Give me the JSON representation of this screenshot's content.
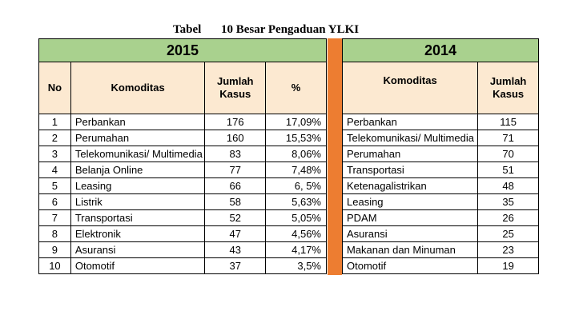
{
  "caption": {
    "label": "Tabel",
    "title": "10 Besar Pengaduan YLKI"
  },
  "accent_colors": {
    "year_header": "#a9d18e",
    "column_header": "#fce9d1",
    "separator": "#ed7d31"
  },
  "table_2015": {
    "year": "2015",
    "headers": {
      "no": "No",
      "komoditas": "Komoditas",
      "jumlah": "Jumlah Kasus",
      "percent": "%"
    },
    "rows": [
      {
        "no": "1",
        "komoditas": "Perbankan",
        "jumlah": "176",
        "percent": "17,09%"
      },
      {
        "no": "2",
        "komoditas": "Perumahan",
        "jumlah": "160",
        "percent": "15,53%"
      },
      {
        "no": "3",
        "komoditas": "Telekomunikasi/ Multimedia",
        "jumlah": "83",
        "percent": "8,06%"
      },
      {
        "no": "4",
        "komoditas": "Belanja Online",
        "jumlah": "77",
        "percent": "7,48%"
      },
      {
        "no": "5",
        "komoditas": "Leasing",
        "jumlah": "66",
        "percent": "6, 5%"
      },
      {
        "no": "6",
        "komoditas": "Listrik",
        "jumlah": "58",
        "percent": "5,63%"
      },
      {
        "no": "7",
        "komoditas": "Transportasi",
        "jumlah": "52",
        "percent": "5,05%"
      },
      {
        "no": "8",
        "komoditas": "Elektronik",
        "jumlah": "47",
        "percent": "4,56%"
      },
      {
        "no": "9",
        "komoditas": "Asuransi",
        "jumlah": "43",
        "percent": "4,17%"
      },
      {
        "no": "10",
        "komoditas": "Otomotif",
        "jumlah": "37",
        "percent": "3,5%"
      }
    ]
  },
  "table_2014": {
    "year": "2014",
    "headers": {
      "komoditas": "Komoditas",
      "jumlah": "Jumlah Kasus"
    },
    "rows": [
      {
        "komoditas": "Perbankan",
        "jumlah": "115"
      },
      {
        "komoditas": "Telekomunikasi/ Multimedia",
        "jumlah": "71"
      },
      {
        "komoditas": "Perumahan",
        "jumlah": "70"
      },
      {
        "komoditas": "Transportasi",
        "jumlah": "51"
      },
      {
        "komoditas": "Ketenagalistrikan",
        "jumlah": "48"
      },
      {
        "komoditas": "Leasing",
        "jumlah": "35"
      },
      {
        "komoditas": "PDAM",
        "jumlah": "26"
      },
      {
        "komoditas": "Asuransi",
        "jumlah": "25"
      },
      {
        "komoditas": "Makanan dan Minuman",
        "jumlah": "23"
      },
      {
        "komoditas": "Otomotif",
        "jumlah": "19"
      }
    ]
  }
}
